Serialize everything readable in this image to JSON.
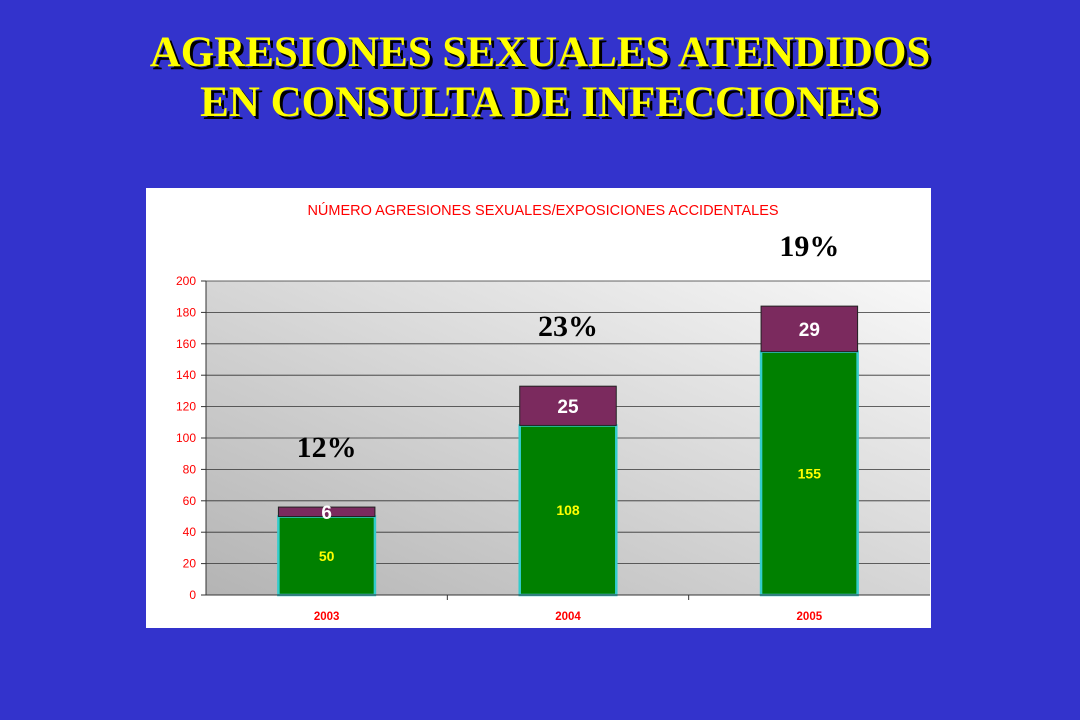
{
  "title": {
    "line1": "AGRESIONES SEXUALES ATENDIDOS",
    "line2": "EN CONSULTA DE INFECCIONES"
  },
  "colors": {
    "background": "#3333cc",
    "title": "#ffff00",
    "base_bar": "#008000",
    "top_bar": "#7b2a5e",
    "bar_outline": "#33cccc",
    "chart_text": "#ff0000"
  },
  "chart_data": {
    "type": "bar",
    "stacked": true,
    "title": "NÚMERO AGRESIONES SEXUALES/EXPOSICIONES ACCIDENTALES",
    "categories": [
      "2003",
      "2004",
      "2005"
    ],
    "series": [
      {
        "name": "base",
        "values": [
          50,
          108,
          155
        ]
      },
      {
        "name": "agresiones",
        "values": [
          6,
          25,
          29
        ]
      }
    ],
    "annotations": [
      "12%",
      "23%",
      "19%"
    ],
    "ylim": [
      0,
      200
    ],
    "yticks": [
      0,
      20,
      40,
      60,
      80,
      100,
      120,
      140,
      160,
      180,
      200
    ],
    "xlabel": "",
    "ylabel": "",
    "grid": true,
    "legend": "none"
  }
}
